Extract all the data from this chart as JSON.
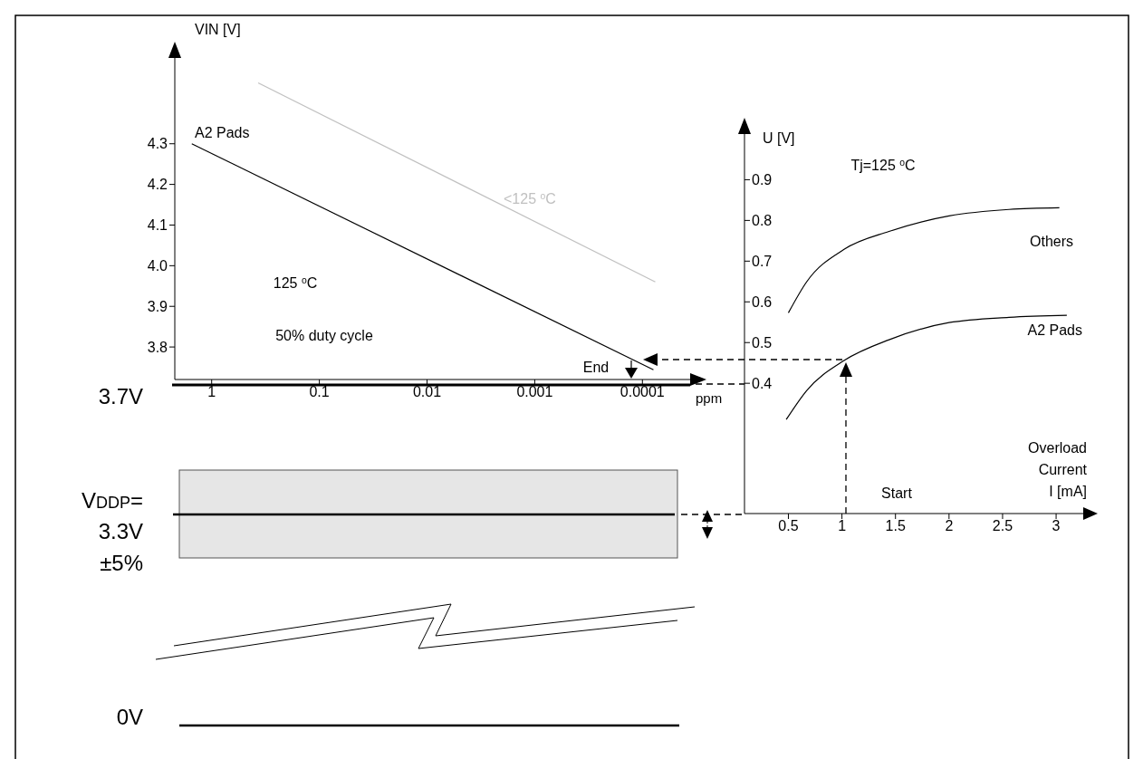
{
  "chart_data": [
    {
      "type": "line",
      "xlabel": "ppm",
      "ylabel": "VIN [V]",
      "log": "x",
      "xlim": [
        2.2,
        3.4e-05
      ],
      "xticks": [
        1,
        0.1,
        0.01,
        0.001,
        0.0001
      ],
      "ylim": [
        3.72,
        4.52
      ],
      "yticks": [
        3.8,
        3.9,
        {
          "value": 4,
          "label": "4.0"
        },
        4.1,
        4.2,
        4.3
      ],
      "series": [
        {
          "name": "A2 Pads",
          "color": "#000000",
          "x": [
            1.53,
            7.9e-05
          ],
          "values": [
            4.3,
            3.744
          ]
        },
        {
          "name": "<125 $^{o}$C",
          "color": "#c0c0c0",
          "x": [
            0.37,
            7.6e-05
          ],
          "values": [
            4.45,
            3.96
          ]
        }
      ],
      "annotations": [
        "125 $^{o}$C",
        "50% duty cycle",
        "End",
        "3.7V",
        "V$_{DDP}$=",
        "3.3V",
        "±5%",
        "0V"
      ]
    },
    {
      "type": "line",
      "xlabel": "Overload Current I [mA]",
      "ylabel": "U [V]",
      "xlim": [
        0.09,
        3.27
      ],
      "xticks": [
        0.5,
        1,
        1.5,
        2,
        2.5,
        3
      ],
      "ylim": [
        0.08,
        1.03
      ],
      "yticks": [
        0.4,
        0.5,
        0.6,
        0.7,
        0.8,
        0.9
      ],
      "series": [
        {
          "name": "Others",
          "color": "#000000",
          "x": [
            0.5,
            0.67,
            1.02,
            1.44,
            2.0,
            2.56,
            3.03
          ],
          "values": [
            0.573,
            0.649,
            0.729,
            0.773,
            0.811,
            0.827,
            0.831
          ]
        },
        {
          "name": "A2 Pads",
          "color": "#000000",
          "x": [
            0.48,
            0.67,
            1.02,
            1.44,
            2.0,
            2.56,
            3.1
          ],
          "values": [
            0.311,
            0.382,
            0.456,
            0.507,
            0.549,
            0.562,
            0.567
          ]
        }
      ],
      "annotations": [
        "Tj=125 $^{o}$C",
        "Start"
      ]
    }
  ]
}
